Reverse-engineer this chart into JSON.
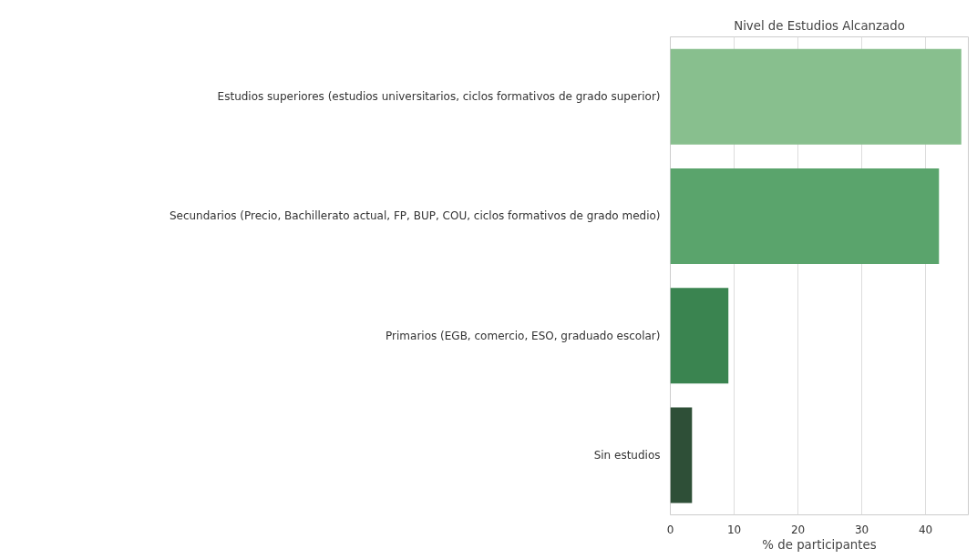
{
  "chart_data": {
    "type": "bar",
    "orientation": "horizontal",
    "title": "Nivel de Estudios Alcanzado",
    "xlabel": "% de participantes",
    "categories": [
      "Estudios superiores (estudios universitarios, ciclos formativos de grado superior)",
      "Secundarios (Precio, Bachillerato actual, FP, BUP, COU, ciclos formativos de grado medio)",
      "Primarios (EGB, comercio, ESO, graduado escolar)",
      "Sin estudios"
    ],
    "values": [
      45.6,
      42.1,
      9.1,
      3.4
    ],
    "colors": [
      "#88bf8e",
      "#5aa46c",
      "#3a8450",
      "#2e4f37"
    ],
    "xlim": [
      0,
      46.7
    ],
    "xticks": [
      0,
      10,
      20,
      30,
      40
    ],
    "grid": "x"
  }
}
